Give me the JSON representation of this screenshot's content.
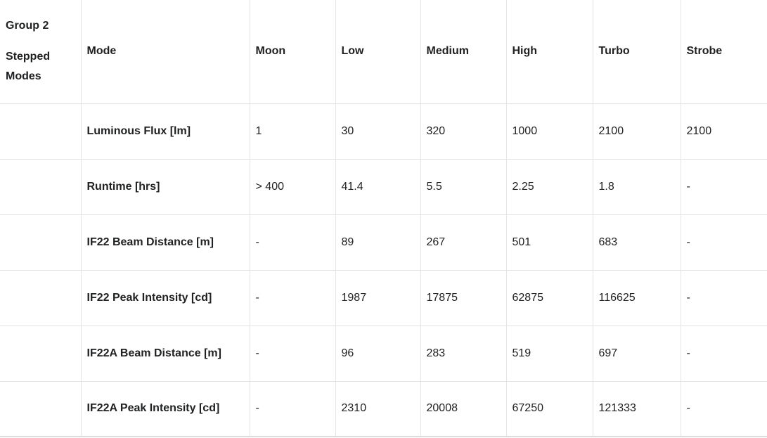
{
  "colors": {
    "text": "#202122",
    "border": "#e2e2e2",
    "background": "#ffffff"
  },
  "chart_data": {
    "type": "table",
    "corner_label": {
      "line1": "Group 2",
      "line2": "Stepped Modes"
    },
    "columns": [
      "Mode",
      "Moon",
      "Low",
      "Medium",
      "High",
      "Turbo",
      "Strobe"
    ],
    "rows": [
      {
        "label": "Luminous Flux [lm]",
        "values": [
          "1",
          "30",
          "320",
          "1000",
          "2100",
          "2100"
        ]
      },
      {
        "label": "Runtime [hrs]",
        "values": [
          "> 400",
          "41.4",
          "5.5",
          "2.25",
          "1.8",
          "-"
        ]
      },
      {
        "label": "IF22 Beam Distance [m]",
        "values": [
          "-",
          "89",
          "267",
          "501",
          "683",
          "-"
        ]
      },
      {
        "label": "IF22 Peak Intensity [cd]",
        "values": [
          "-",
          "1987",
          "17875",
          "62875",
          "116625",
          "-"
        ]
      },
      {
        "label": "IF22A Beam Distance [m]",
        "values": [
          "-",
          "96",
          "283",
          "519",
          "697",
          "-"
        ]
      },
      {
        "label": "IF22A Peak Intensity [cd]",
        "values": [
          "-",
          "2310",
          "20008",
          "67250",
          "121333",
          "-"
        ]
      }
    ]
  }
}
